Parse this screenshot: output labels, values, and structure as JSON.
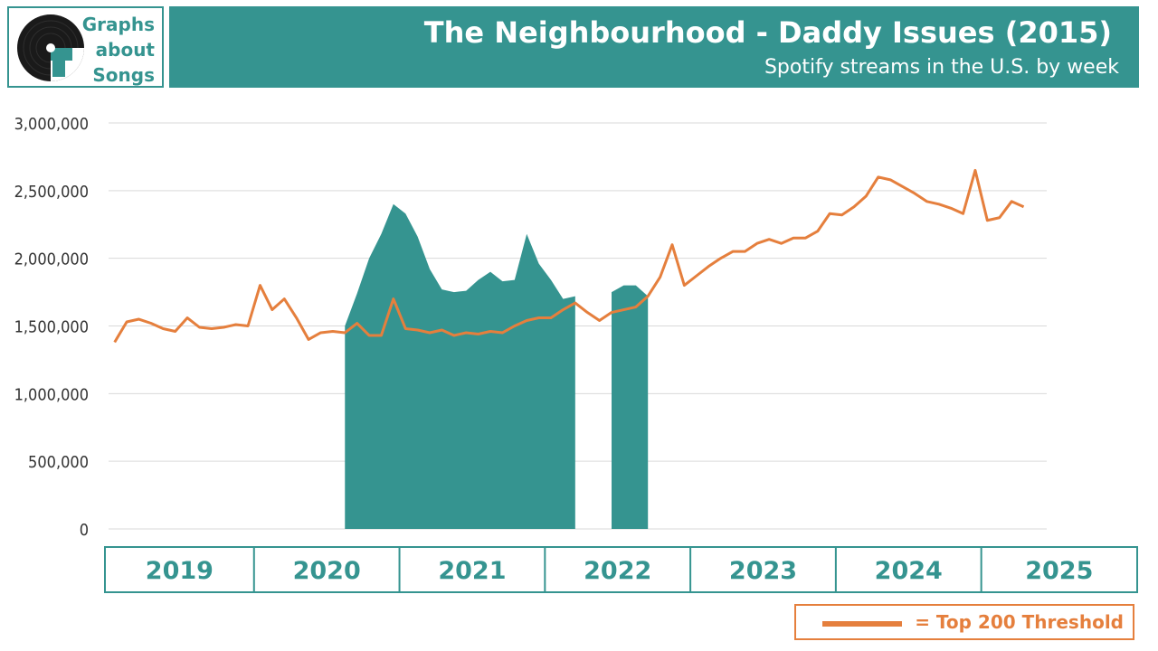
{
  "header": {
    "logo_lines": [
      "Graphs",
      "about",
      "Songs"
    ],
    "title": "The Neighbourhood - Daddy Issues (2015)",
    "subtitle": "Spotify streams in the U.S. by week"
  },
  "legend": {
    "label": "= Top 200 Threshold"
  },
  "colors": {
    "teal": "#359490",
    "orange": "#e57f3d",
    "grid": "#d9d9d9",
    "text": "#333333"
  },
  "chart_data": {
    "type": "area",
    "title": "The Neighbourhood - Daddy Issues (2015)",
    "subtitle": "Spotify streams in the U.S. by week",
    "ylim": [
      0,
      3000000
    ],
    "y_ticks": [
      0,
      500000,
      1000000,
      1500000,
      2000000,
      2500000,
      3000000
    ],
    "y_tick_labels": [
      "0",
      "500,000",
      "1,000,000",
      "1,500,000",
      "2,000,000",
      "2,500,000",
      "3,000,000"
    ],
    "x_year_labels": [
      {
        "label": "2019",
        "start": "2019-01",
        "end": "2019-12"
      },
      {
        "label": "2020",
        "start": "2020-01",
        "end": "2020-12"
      },
      {
        "label": "2021",
        "start": "2021-01",
        "end": "2021-12"
      },
      {
        "label": "2022",
        "start": "2022-01",
        "end": "2022-12"
      },
      {
        "label": "2023",
        "start": "2023-01",
        "end": "2023-12"
      },
      {
        "label": "2024",
        "start": "2024-01",
        "end": "2024-12"
      },
      {
        "label": "2025",
        "start": "2025-01",
        "end": "2025-06"
      }
    ],
    "grid": true,
    "legend_position": "bottom-right",
    "series": [
      {
        "kind": "area",
        "segments": [
          [
            [
              "2020-08",
              1500000
            ],
            [
              "2020-09",
              1740000
            ],
            [
              "2020-10",
              2000000
            ],
            [
              "2020-11",
              2180000
            ],
            [
              "2020-12",
              2400000
            ],
            [
              "2021-01",
              2330000
            ],
            [
              "2021-02",
              2160000
            ],
            [
              "2021-03",
              1920000
            ],
            [
              "2021-04",
              1770000
            ],
            [
              "2021-05",
              1750000
            ],
            [
              "2021-06",
              1760000
            ],
            [
              "2021-07",
              1840000
            ],
            [
              "2021-08",
              1900000
            ],
            [
              "2021-09",
              1830000
            ],
            [
              "2021-10",
              1840000
            ],
            [
              "2021-11",
              2180000
            ],
            [
              "2021-12",
              1960000
            ],
            [
              "2022-01",
              1840000
            ],
            [
              "2022-02",
              1700000
            ],
            [
              "2022-03",
              1720000
            ]
          ],
          [
            [
              "2022-06",
              1750000
            ],
            [
              "2022-07",
              1800000
            ],
            [
              "2022-08",
              1800000
            ],
            [
              "2022-09",
              1720000
            ]
          ]
        ]
      },
      {
        "name": "Top 200 Threshold",
        "kind": "line",
        "points": [
          [
            "2019-01",
            1380000
          ],
          [
            "2019-02",
            1530000
          ],
          [
            "2019-03",
            1550000
          ],
          [
            "2019-04",
            1520000
          ],
          [
            "2019-05",
            1480000
          ],
          [
            "2019-06",
            1460000
          ],
          [
            "2019-07",
            1560000
          ],
          [
            "2019-08",
            1490000
          ],
          [
            "2019-09",
            1480000
          ],
          [
            "2019-10",
            1490000
          ],
          [
            "2019-11",
            1510000
          ],
          [
            "2019-12",
            1500000
          ],
          [
            "2020-01",
            1800000
          ],
          [
            "2020-02",
            1620000
          ],
          [
            "2020-03",
            1700000
          ],
          [
            "2020-04",
            1560000
          ],
          [
            "2020-05",
            1400000
          ],
          [
            "2020-06",
            1450000
          ],
          [
            "2020-07",
            1460000
          ],
          [
            "2020-08",
            1450000
          ],
          [
            "2020-09",
            1520000
          ],
          [
            "2020-10",
            1430000
          ],
          [
            "2020-11",
            1430000
          ],
          [
            "2020-12",
            1700000
          ],
          [
            "2021-01",
            1480000
          ],
          [
            "2021-02",
            1470000
          ],
          [
            "2021-03",
            1450000
          ],
          [
            "2021-04",
            1470000
          ],
          [
            "2021-05",
            1430000
          ],
          [
            "2021-06",
            1450000
          ],
          [
            "2021-07",
            1440000
          ],
          [
            "2021-08",
            1460000
          ],
          [
            "2021-09",
            1450000
          ],
          [
            "2021-10",
            1500000
          ],
          [
            "2021-11",
            1540000
          ],
          [
            "2021-12",
            1560000
          ],
          [
            "2022-01",
            1560000
          ],
          [
            "2022-02",
            1620000
          ],
          [
            "2022-03",
            1670000
          ],
          [
            "2022-04",
            1600000
          ],
          [
            "2022-05",
            1540000
          ],
          [
            "2022-06",
            1600000
          ],
          [
            "2022-07",
            1620000
          ],
          [
            "2022-08",
            1640000
          ],
          [
            "2022-09",
            1720000
          ],
          [
            "2022-10",
            1860000
          ],
          [
            "2022-11",
            2100000
          ],
          [
            "2022-12",
            1800000
          ],
          [
            "2023-01",
            1870000
          ],
          [
            "2023-02",
            1940000
          ],
          [
            "2023-03",
            2000000
          ],
          [
            "2023-04",
            2050000
          ],
          [
            "2023-05",
            2050000
          ],
          [
            "2023-06",
            2110000
          ],
          [
            "2023-07",
            2140000
          ],
          [
            "2023-08",
            2110000
          ],
          [
            "2023-09",
            2150000
          ],
          [
            "2023-10",
            2150000
          ],
          [
            "2023-11",
            2200000
          ],
          [
            "2023-12",
            2330000
          ],
          [
            "2024-01",
            2320000
          ],
          [
            "2024-02",
            2380000
          ],
          [
            "2024-03",
            2460000
          ],
          [
            "2024-04",
            2600000
          ],
          [
            "2024-05",
            2580000
          ],
          [
            "2024-06",
            2530000
          ],
          [
            "2024-07",
            2480000
          ],
          [
            "2024-08",
            2420000
          ],
          [
            "2024-09",
            2400000
          ],
          [
            "2024-10",
            2370000
          ],
          [
            "2024-11",
            2330000
          ],
          [
            "2024-12",
            2650000
          ],
          [
            "2025-01",
            2280000
          ],
          [
            "2025-02",
            2300000
          ],
          [
            "2025-03",
            2420000
          ],
          [
            "2025-04",
            2380000
          ]
        ]
      }
    ]
  }
}
